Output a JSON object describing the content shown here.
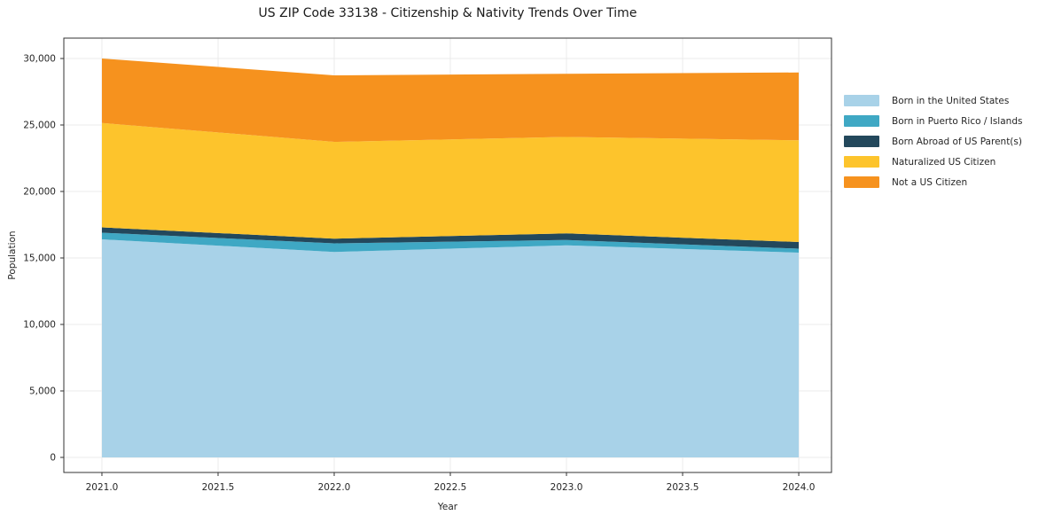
{
  "chart_data": {
    "type": "area",
    "stacked": true,
    "title": "US ZIP Code 33138 - Citizenship & Nativity Trends Over Time",
    "xlabel": "Year",
    "ylabel": "Population",
    "x": [
      2021,
      2022,
      2023,
      2024
    ],
    "series": [
      {
        "name": "Born in the United States",
        "color": "#a8d2e8",
        "values": [
          16400,
          15450,
          15950,
          15400
        ]
      },
      {
        "name": "Born in Puerto Rico / Islands",
        "color": "#3fa8c4",
        "values": [
          500,
          650,
          400,
          300
        ]
      },
      {
        "name": "Born Abroad of US Parent(s)",
        "color": "#23485c",
        "values": [
          400,
          350,
          500,
          500
        ]
      },
      {
        "name": "Naturalized US Citizen",
        "color": "#fdc42c",
        "values": [
          7850,
          7280,
          7250,
          7650
        ]
      },
      {
        "name": "Not a US Citizen",
        "color": "#f6921e",
        "values": [
          4850,
          5000,
          4750,
          5100
        ]
      }
    ],
    "x_ticks": [
      {
        "v": 2021.0,
        "label": "2021.0"
      },
      {
        "v": 2021.5,
        "label": "2021.5"
      },
      {
        "v": 2022.0,
        "label": "2022.0"
      },
      {
        "v": 2022.5,
        "label": "2022.5"
      },
      {
        "v": 2023.0,
        "label": "2023.0"
      },
      {
        "v": 2023.5,
        "label": "2023.5"
      },
      {
        "v": 2024.0,
        "label": "2024.0"
      }
    ],
    "y_ticks": [
      {
        "v": 0,
        "label": "0"
      },
      {
        "v": 5000,
        "label": "5,000"
      },
      {
        "v": 10000,
        "label": "10,000"
      },
      {
        "v": 15000,
        "label": "15,000"
      },
      {
        "v": 20000,
        "label": "20,000"
      },
      {
        "v": 25000,
        "label": "25,000"
      },
      {
        "v": 30000,
        "label": "30,000"
      }
    ],
    "xlim": [
      2020.836,
      2024.141
    ],
    "ylim": [
      -1133,
      31533
    ],
    "grid": true,
    "legend_position": "right-outside",
    "colors": {
      "grid": "#ebebeb",
      "spine": "#333333",
      "tick_text": "#262626",
      "background": "#ffffff"
    }
  }
}
